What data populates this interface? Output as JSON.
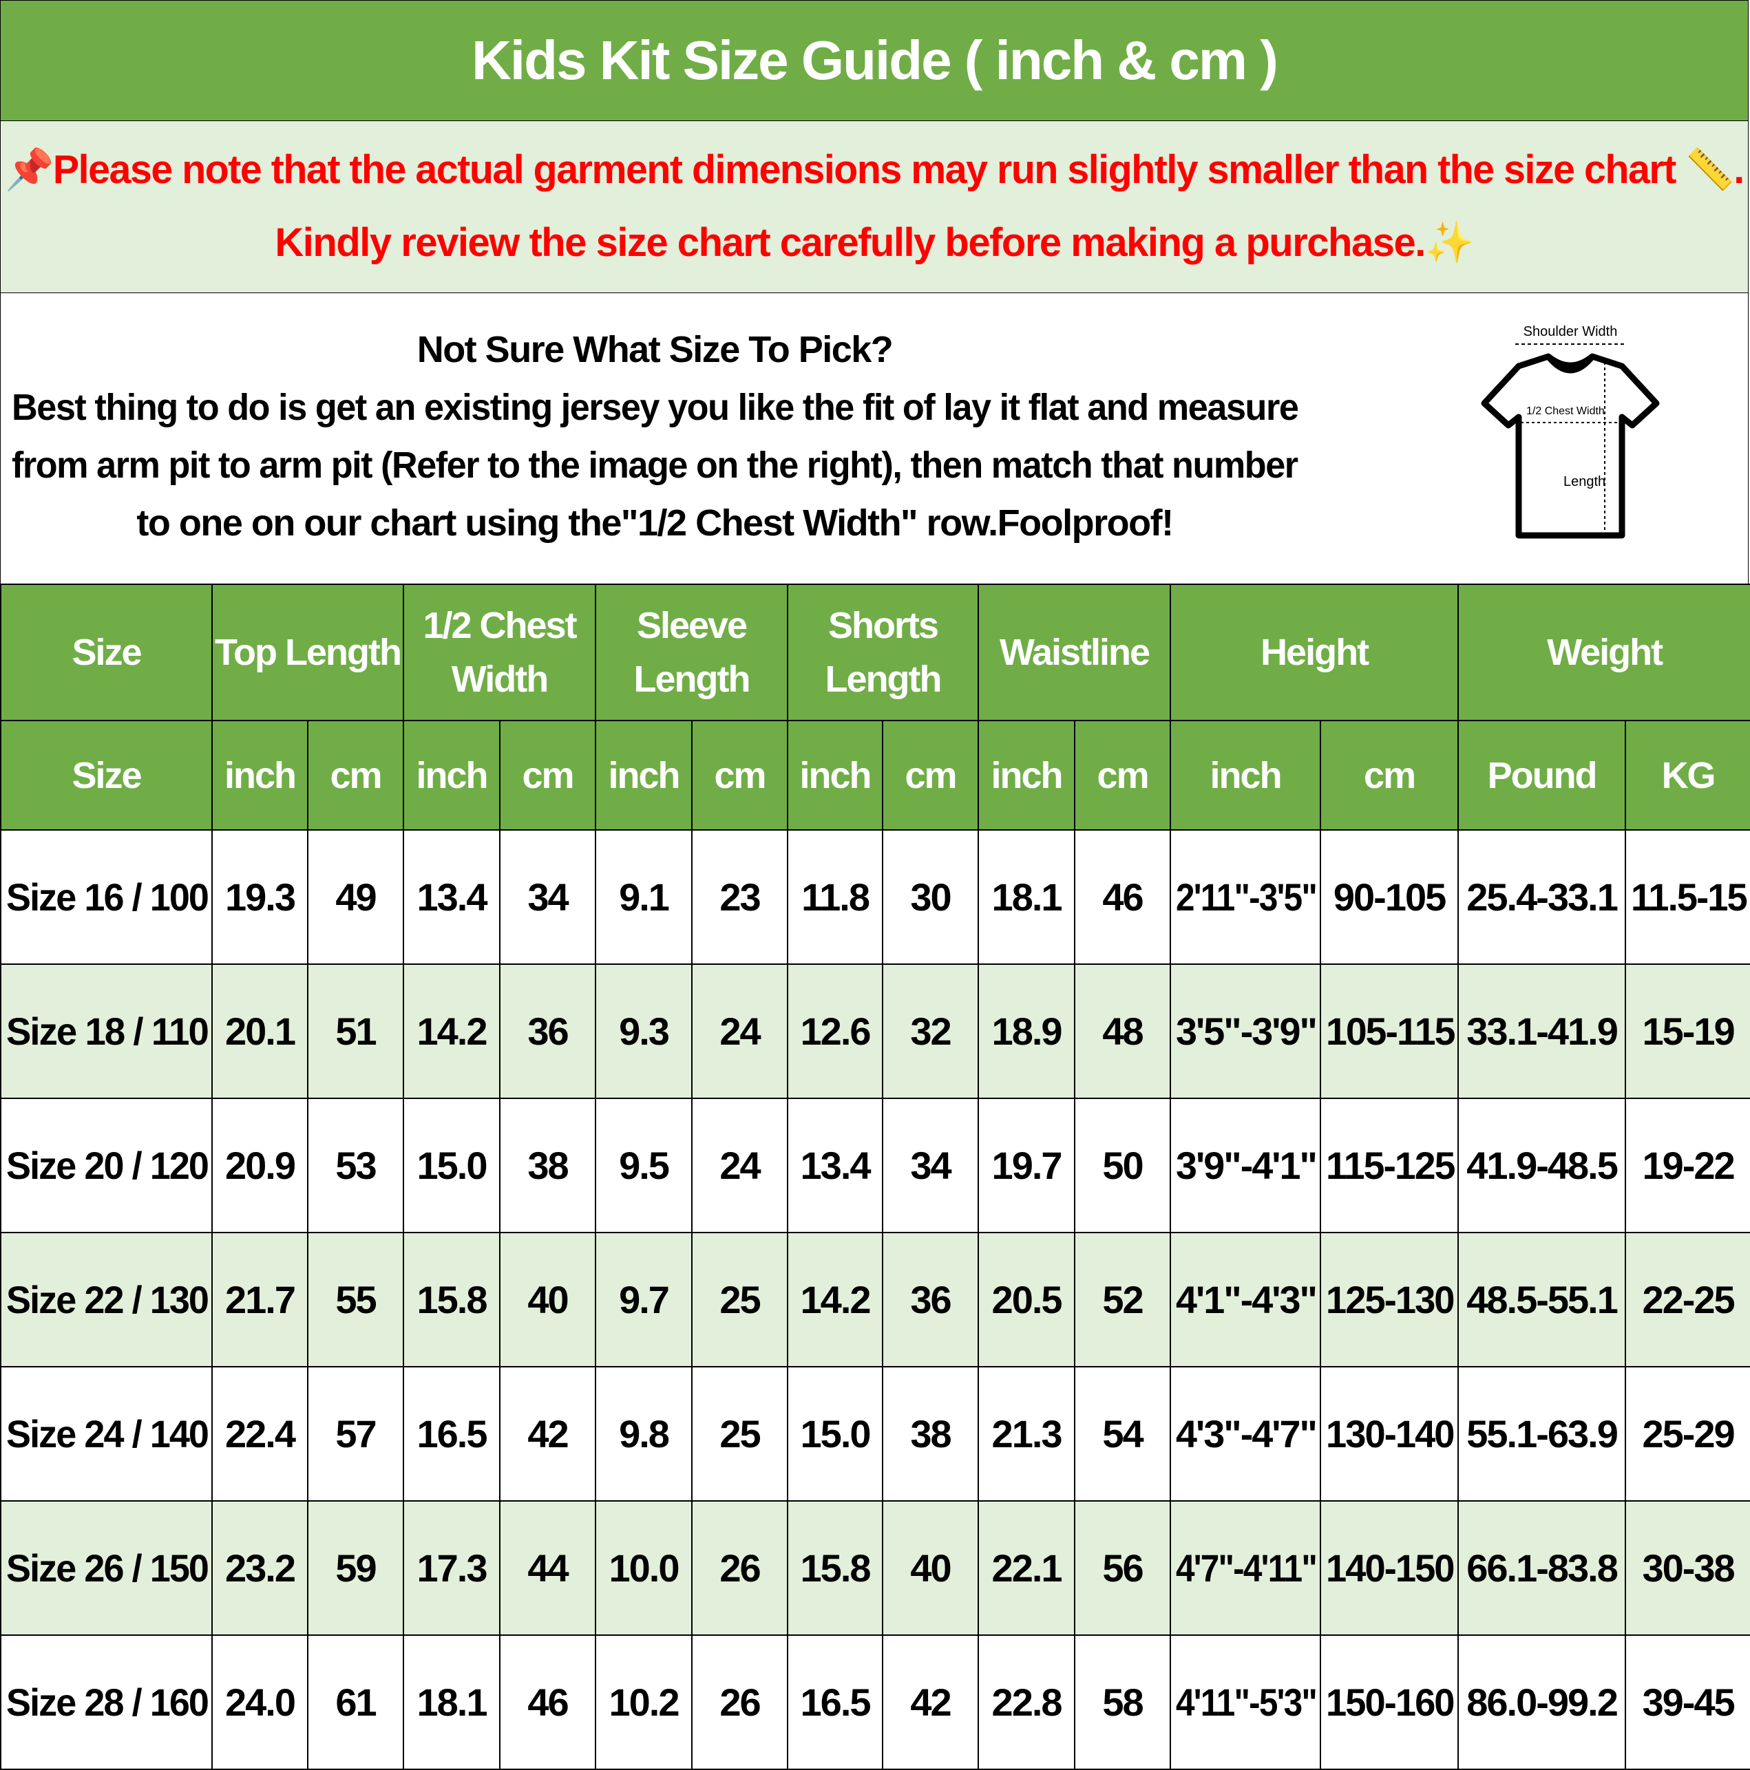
{
  "title": "Kids Kit Size Guide ( inch & cm )",
  "note": {
    "line1": "Please note that the actual garment dimensions may run slightly smaller than the size chart",
    "line1_end": ".",
    "line2": "Kindly review the size chart carefully before making a purchase.",
    "icons": [
      "pushpin-icon",
      "ruler-icon",
      "sparkles-icon"
    ],
    "color": "#FF0000"
  },
  "info": {
    "heading": "Not Sure What Size To Pick?",
    "body1": "Best thing to do is get an existing jersey you like the fit of lay it flat and measure",
    "body2": "from arm pit to arm pit (Refer to the image on the right), then match that number",
    "body3": "to one on our chart using the\"1/2 Chest Width\" row.Foolproof!",
    "diagram": {
      "shoulder": "Shoulder Width",
      "chest": "1/2 Chest Width",
      "length": "Length"
    }
  },
  "colors": {
    "header_green": "#70AD47",
    "row_light_green": "#E2EFDA"
  },
  "table": {
    "groups": [
      {
        "label": "Size",
        "span": 1
      },
      {
        "label": "Top Length",
        "span": 2
      },
      {
        "label": "1/2 Chest Width",
        "span": 2
      },
      {
        "label": "Sleeve Length",
        "span": 2
      },
      {
        "label": "Shorts Length",
        "span": 2
      },
      {
        "label": "Waistline",
        "span": 2
      },
      {
        "label": "Height",
        "span": 2
      },
      {
        "label": "Weight",
        "span": 2
      }
    ],
    "units": [
      "Size",
      "inch",
      "cm",
      "inch",
      "cm",
      "inch",
      "cm",
      "inch",
      "cm",
      "inch",
      "cm",
      "inch",
      "cm",
      "Pound",
      "KG"
    ],
    "rows": [
      [
        "Size 16 / 100",
        "19.3",
        "49",
        "13.4",
        "34",
        "9.1",
        "23",
        "11.8",
        "30",
        "18.1",
        "46",
        "2'11\"-3'5\"",
        "90-105",
        "25.4-33.1",
        "11.5-15"
      ],
      [
        "Size 18 / 110",
        "20.1",
        "51",
        "14.2",
        "36",
        "9.3",
        "24",
        "12.6",
        "32",
        "18.9",
        "48",
        "3'5\"-3'9\"",
        "105-115",
        "33.1-41.9",
        "15-19"
      ],
      [
        "Size 20 / 120",
        "20.9",
        "53",
        "15.0",
        "38",
        "9.5",
        "24",
        "13.4",
        "34",
        "19.7",
        "50",
        "3'9\"-4'1\"",
        "115-125",
        "41.9-48.5",
        "19-22"
      ],
      [
        "Size 22 / 130",
        "21.7",
        "55",
        "15.8",
        "40",
        "9.7",
        "25",
        "14.2",
        "36",
        "20.5",
        "52",
        "4'1\"-4'3\"",
        "125-130",
        "48.5-55.1",
        "22-25"
      ],
      [
        "Size 24 / 140",
        "22.4",
        "57",
        "16.5",
        "42",
        "9.8",
        "25",
        "15.0",
        "38",
        "21.3",
        "54",
        "4'3\"-4'7\"",
        "130-140",
        "55.1-63.9",
        "25-29"
      ],
      [
        "Size 26 / 150",
        "23.2",
        "59",
        "17.3",
        "44",
        "10.0",
        "26",
        "15.8",
        "40",
        "22.1",
        "56",
        "4'7\"-4'11\"",
        "140-150",
        "66.1-83.8",
        "30-38"
      ],
      [
        "Size 28 / 160",
        "24.0",
        "61",
        "18.1",
        "46",
        "10.2",
        "26",
        "16.5",
        "42",
        "22.8",
        "58",
        "4'11\"-5'3\"",
        "150-160",
        "86.0-99.2",
        "39-45"
      ]
    ]
  }
}
